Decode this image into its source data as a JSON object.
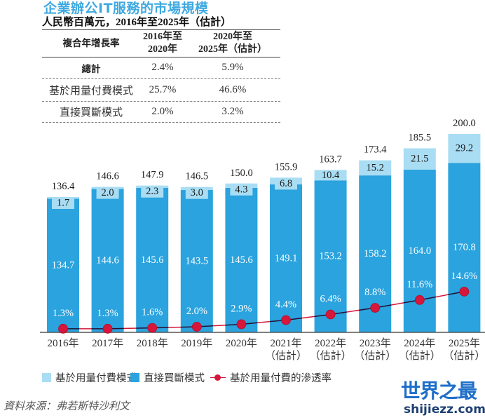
{
  "title": "企業辦公IT服務的市場規模",
  "subtitle": "人民幣百萬元，2016年至2025年（估計）",
  "cagr_table": {
    "header": {
      "col1": "複合年增長率",
      "col2": [
        "2016年至",
        "2020年"
      ],
      "col3": [
        "2020年至",
        "2025年（估計）"
      ]
    },
    "rows": [
      {
        "label": "總計",
        "period1": "2.4%",
        "period2": "5.9%"
      },
      {
        "label": "基於用量付費模式",
        "period1": "25.7%",
        "period2": "46.6%"
      },
      {
        "label": "直接買斷模式",
        "period1": "2.0%",
        "period2": "3.2%"
      }
    ]
  },
  "chart_data": {
    "type": "bar",
    "stacked": true,
    "title": "企業辦公IT服務的市場規模",
    "subtitle": "人民幣百萬元，2016年至2025年（估計）",
    "xlabel": "",
    "ylabel": "人民幣百萬元",
    "categories": [
      "2016年",
      "2017年",
      "2018年",
      "2019年",
      "2020年",
      "2021年",
      "2022年",
      "2023年",
      "2024年",
      "2025年"
    ],
    "category_notes": [
      "",
      "",
      "",
      "",
      "",
      "（估計）",
      "（估計）",
      "（估計）",
      "（估計）",
      "（估計）"
    ],
    "totals": [
      136.4,
      146.6,
      147.9,
      146.5,
      150.0,
      155.9,
      163.7,
      173.4,
      185.5,
      200.0
    ],
    "series": [
      {
        "name": "直接買斷模式",
        "type": "bar",
        "color": "#2aa3de",
        "values": [
          134.7,
          144.6,
          145.6,
          143.5,
          145.6,
          149.1,
          153.2,
          158.2,
          164.0,
          170.8
        ]
      },
      {
        "name": "基於用量付費模式",
        "type": "bar",
        "color": "#a9ddf3",
        "values": [
          1.7,
          2.0,
          2.3,
          3.0,
          4.3,
          6.8,
          10.4,
          15.2,
          21.5,
          29.2
        ]
      },
      {
        "name": "基於用量付費的滲透率",
        "type": "line",
        "unit": "%",
        "color": "#d6163b",
        "values": [
          1.3,
          1.3,
          1.6,
          2.0,
          2.9,
          4.4,
          6.4,
          8.8,
          11.6,
          14.6
        ]
      }
    ],
    "ylim": [
      0,
      200
    ],
    "line_ylim_percent": [
      0,
      14.6
    ],
    "grid": false,
    "legend_position": "bottom"
  },
  "legend": [
    {
      "label": "基於用量付費模式",
      "color": "#a9ddf3",
      "kind": "bar"
    },
    {
      "label": "直接買斷模式",
      "color": "#2aa3de",
      "kind": "bar"
    },
    {
      "label": "基於用量付費的滲透率",
      "color": "#d6163b",
      "kind": "line"
    }
  ],
  "source": "資料來源：弗若斯特沙利文",
  "watermark": {
    "brand": "世界之最",
    "url": "shijiezz.com"
  }
}
